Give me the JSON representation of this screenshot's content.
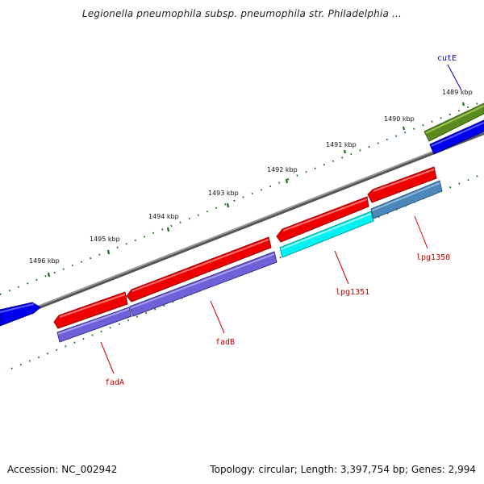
{
  "title": "Legionella pneumophila subsp. pneumophila str. Philadelphia ...",
  "footer": {
    "accession": "Accession: NC_002942",
    "topology": "Topology: circular; Length: 3,397,754 bp; Genes: 2,994"
  },
  "colors": {
    "backbone": "#777777",
    "ticks": "#1a6e1a",
    "gene_label_red": "#cc0000",
    "gene_label_blue": "#0000cc",
    "red_feature": "#ff0000",
    "blue_feature": "#0000ff",
    "olive_feature": "#5b8a1e",
    "purple_feature": "#7060d8",
    "cyan_feature": "#00ffff",
    "steel_feature": "#4d86b8"
  },
  "kbp_ticks": [
    "1489 kbp",
    "1490 kbp",
    "1491 kbp",
    "1492 kbp",
    "1493 kbp",
    "1494 kbp",
    "1495 kbp",
    "1496 kbp"
  ],
  "gene_labels": [
    "cutE",
    "lpg1350",
    "lpg1351",
    "fadB",
    "fadA"
  ]
}
